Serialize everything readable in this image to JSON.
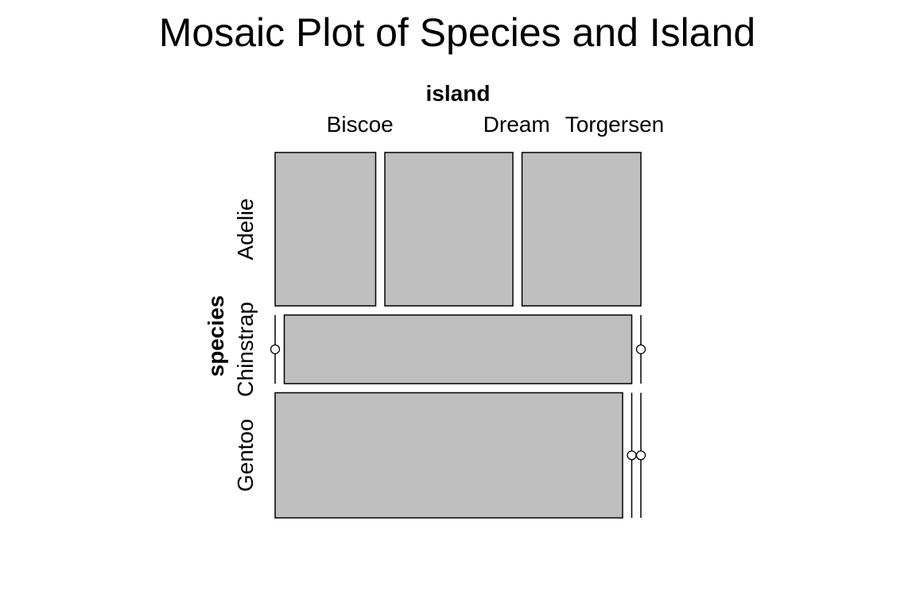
{
  "chart_data": {
    "type": "mosaic",
    "title": "Mosaic Plot of Species and Island",
    "col_variable": "island",
    "row_variable": "species",
    "columns": [
      "Biscoe",
      "Dream",
      "Torgersen"
    ],
    "rows": [
      "Adelie",
      "Chinstrap",
      "Gentoo"
    ],
    "counts": [
      [
        44,
        56,
        52
      ],
      [
        0,
        68,
        0
      ],
      [
        124,
        0,
        0
      ]
    ],
    "colors": {
      "fill": "#bfbfbf",
      "stroke": "#000000",
      "background": "#ffffff"
    }
  }
}
